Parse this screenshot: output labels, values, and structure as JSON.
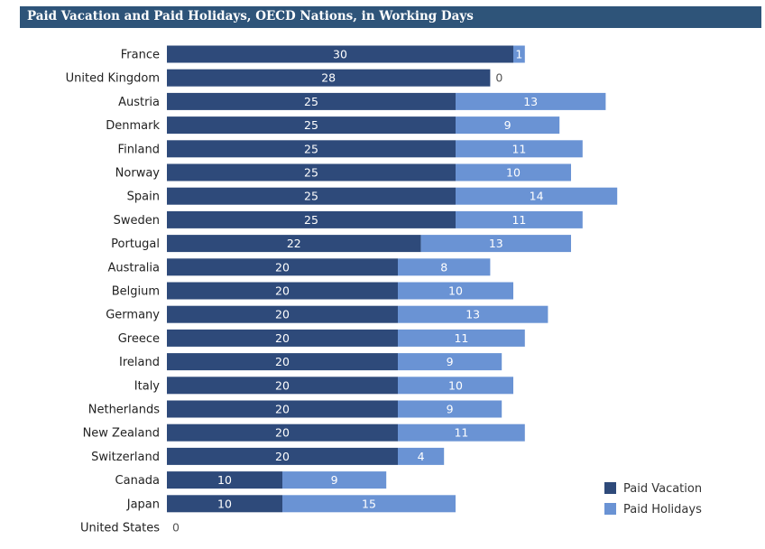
{
  "chart_data": {
    "type": "bar",
    "orientation": "horizontal",
    "stacked": true,
    "title": "Paid Vacation and Paid Holidays, OECD Nations, in Working Days",
    "categories": [
      "France",
      "United Kingdom",
      "Austria",
      "Denmark",
      "Finland",
      "Norway",
      "Spain",
      "Sweden",
      "Portugal",
      "Australia",
      "Belgium",
      "Germany",
      "Greece",
      "Ireland",
      "Italy",
      "Netherlands",
      "New Zealand",
      "Switzerland",
      "Canada",
      "Japan",
      "United States"
    ],
    "series": [
      {
        "name": "Paid Vacation",
        "color": "#2e4a7a",
        "values": [
          30,
          28,
          25,
          25,
          25,
          25,
          25,
          25,
          22,
          20,
          20,
          20,
          20,
          20,
          20,
          20,
          20,
          20,
          10,
          10,
          0
        ]
      },
      {
        "name": "Paid Holidays",
        "color": "#6a93d4",
        "values": [
          1,
          0,
          13,
          9,
          11,
          10,
          14,
          11,
          13,
          8,
          10,
          13,
          11,
          9,
          10,
          9,
          11,
          4,
          9,
          15,
          0
        ]
      }
    ],
    "legend_position": "bottom-right",
    "grid": false
  }
}
